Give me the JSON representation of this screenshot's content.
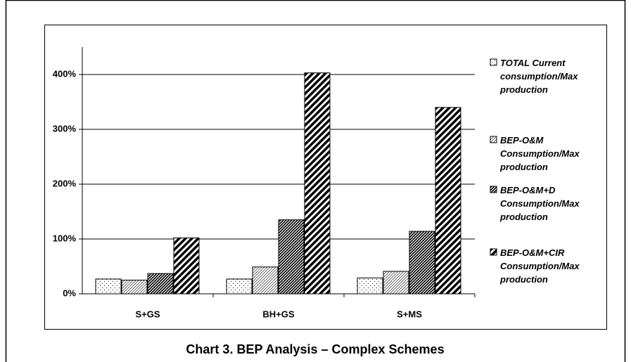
{
  "chart_data": {
    "type": "bar",
    "title": "Chart 3. BEP Analysis – Complex Schemes",
    "categories": [
      "S+GS",
      "BH+GS",
      "S+MS"
    ],
    "series": [
      {
        "name": "TOTAL Current consumption/Max production",
        "color": "#000000",
        "pattern": "dots",
        "values": [
          27,
          27,
          29
        ]
      },
      {
        "name": "BEP-O&M Consumption/Max production",
        "color": "#000000",
        "pattern": "light-diagonal",
        "values": [
          25,
          49,
          41
        ]
      },
      {
        "name": "BEP-O&M+D Consumption/Max production",
        "color": "#000000",
        "pattern": "dense-diagonal",
        "values": [
          37,
          135,
          114
        ]
      },
      {
        "name": "BEP-O&M+CIR Consumption/Max production",
        "color": "#000000",
        "pattern": "wide-diagonal",
        "values": [
          102,
          403,
          340
        ]
      }
    ],
    "ylim": [
      0,
      450
    ],
    "yticks": [
      {
        "value": 0,
        "label": "0%"
      },
      {
        "value": 100,
        "label": "100%"
      },
      {
        "value": 200,
        "label": "200%"
      },
      {
        "value": 300,
        "label": "300%"
      },
      {
        "value": 400,
        "label": "400%"
      }
    ],
    "grid": true,
    "legend": "right"
  }
}
